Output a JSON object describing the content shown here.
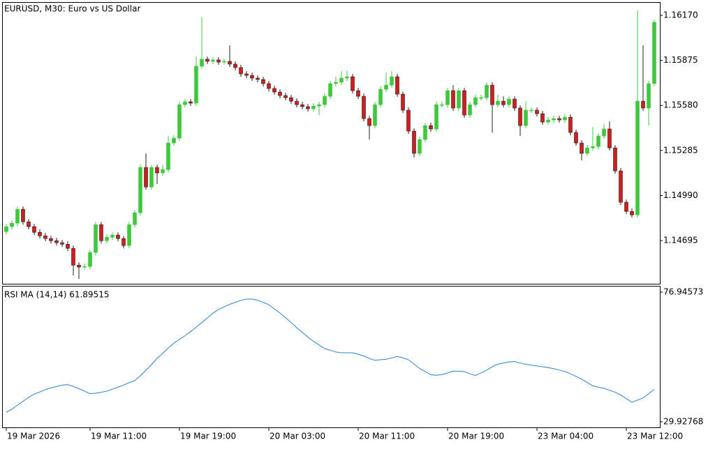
{
  "chart_data": [
    {
      "type": "candlestick",
      "title": "EURUSD, M30:  Euro vs US Dollar",
      "up_color": "#3ec83c",
      "down_color": "#d01e1e",
      "categories": [
        "19 Mar 2026",
        null,
        null,
        null,
        null,
        null,
        null,
        null,
        null,
        null,
        null,
        null,
        null,
        null,
        null,
        "19 Mar 11:00",
        null,
        null,
        null,
        null,
        null,
        null,
        null,
        null,
        null,
        null,
        null,
        null,
        null,
        null,
        null,
        "19 Mar 19:00",
        null,
        null,
        null,
        null,
        null,
        null,
        null,
        null,
        null,
        null,
        null,
        null,
        null,
        null,
        null,
        "20 Mar 03:00",
        null,
        null,
        null,
        null,
        null,
        null,
        null,
        null,
        null,
        null,
        null,
        null,
        null,
        null,
        null,
        "20 Mar 11:00",
        null,
        null,
        null,
        null,
        null,
        null,
        null,
        null,
        null,
        null,
        null,
        null,
        null,
        null,
        null,
        "20 Mar 19:00",
        null,
        null,
        null,
        null,
        null,
        null,
        null,
        null,
        null,
        null,
        null,
        null,
        null,
        null,
        null,
        "23 Mar 04:00",
        null,
        null,
        null,
        null,
        null,
        null,
        null,
        null,
        null,
        null,
        null,
        null,
        null,
        null,
        null,
        "23 Mar 12:00",
        null,
        null,
        null,
        null,
        null
      ],
      "open": [
        1.14754,
        1.14786,
        1.14809,
        1.149,
        1.14818,
        1.14786,
        1.14749,
        1.14726,
        1.14708,
        1.14694,
        1.14681,
        1.14671,
        1.14644,
        1.14534,
        1.14521,
        1.14525,
        1.14617,
        1.14799,
        1.14694,
        1.14717,
        1.14731,
        1.14708,
        1.14662,
        1.14799,
        1.14877,
        1.15174,
        1.15046,
        1.15174,
        1.15138,
        1.1516,
        1.15334,
        1.15366,
        1.15585,
        1.15604,
        1.15595,
        1.15837,
        1.15883,
        1.15869,
        1.15878,
        1.15864,
        1.15869,
        1.15851,
        1.15828,
        1.15787,
        1.15777,
        1.15759,
        1.1575,
        1.15723,
        1.15691,
        1.15668,
        1.15645,
        1.15631,
        1.15608,
        1.15585,
        1.15572,
        1.15558,
        1.15576,
        1.15585,
        1.1564,
        1.15723,
        1.15732,
        1.15759,
        1.15768,
        1.15677,
        1.1564,
        1.15494,
        1.15448,
        1.15585,
        1.15686,
        1.15713,
        1.15768,
        1.15654,
        1.15549,
        1.15412,
        1.15266,
        1.15357,
        1.15448,
        1.15426,
        1.15585,
        1.15585,
        1.15677,
        1.15563,
        1.15677,
        1.15517,
        1.15585,
        1.15631,
        1.15631,
        1.15713,
        1.15585,
        1.15608,
        1.15585,
        1.15622,
        1.15563,
        1.15448,
        1.15549,
        1.15549,
        1.15526,
        1.15471,
        1.15485,
        1.15494,
        1.15485,
        1.15503,
        1.15403,
        1.15334,
        1.15266,
        1.15302,
        1.15311,
        1.1538,
        1.15426,
        1.15302,
        1.15151,
        1.14946,
        1.14886,
        1.14863,
        1.15608,
        1.15563,
        1.15723
      ],
      "high": [
        1.14804,
        1.14827,
        1.14918,
        1.14918,
        1.14836,
        1.14804,
        1.14768,
        1.14745,
        1.14726,
        1.14713,
        1.14699,
        1.1469,
        1.14662,
        1.14553,
        1.14544,
        1.14635,
        1.14818,
        1.14818,
        1.14736,
        1.14749,
        1.14749,
        1.14726,
        1.14818,
        1.14895,
        1.15192,
        1.15266,
        1.15192,
        1.15192,
        1.15192,
        1.1538,
        1.15385,
        1.15604,
        1.15622,
        1.15622,
        1.15901,
        1.16157,
        1.15901,
        1.15896,
        1.15896,
        1.15887,
        1.15974,
        1.15869,
        1.15846,
        1.15805,
        1.15796,
        1.15777,
        1.15768,
        1.15741,
        1.15709,
        1.15686,
        1.15663,
        1.1565,
        1.15627,
        1.15604,
        1.1559,
        1.15595,
        1.15604,
        1.15659,
        1.15741,
        1.15768,
        1.15805,
        1.15809,
        1.15787,
        1.15695,
        1.15659,
        1.15512,
        1.15604,
        1.15704,
        1.15796,
        1.15805,
        1.15787,
        1.15672,
        1.15567,
        1.1543,
        1.15375,
        1.15467,
        1.15467,
        1.15604,
        1.15604,
        1.15695,
        1.15713,
        1.15695,
        1.15695,
        1.15604,
        1.1565,
        1.1565,
        1.15732,
        1.15732,
        1.1565,
        1.1564,
        1.1564,
        1.1564,
        1.15581,
        1.15608,
        1.15567,
        1.15567,
        1.15544,
        1.15503,
        1.15512,
        1.15512,
        1.15522,
        1.15522,
        1.15421,
        1.15353,
        1.1532,
        1.15439,
        1.15398,
        1.15458,
        1.15476,
        1.1532,
        1.1517,
        1.14964,
        1.14905,
        1.16202,
        1.15974,
        1.15741,
        1.16143
      ],
      "low": [
        1.14736,
        1.14768,
        1.1479,
        1.14799,
        1.14768,
        1.14731,
        1.14708,
        1.1469,
        1.14676,
        1.14662,
        1.14653,
        1.14626,
        1.14466,
        1.14443,
        1.14502,
        1.14507,
        1.14598,
        1.14676,
        1.14676,
        1.14699,
        1.1469,
        1.14644,
        1.14644,
        1.14781,
        1.14859,
        1.15028,
        1.15028,
        1.15065,
        1.15119,
        1.15142,
        1.15316,
        1.15348,
        1.15567,
        1.15576,
        1.15576,
        1.15819,
        1.15851,
        1.15851,
        1.15846,
        1.15846,
        1.15832,
        1.15809,
        1.15768,
        1.15759,
        1.15741,
        1.15732,
        1.15704,
        1.15672,
        1.1565,
        1.15627,
        1.15613,
        1.1559,
        1.15567,
        1.15554,
        1.1554,
        1.1554,
        1.15517,
        1.15567,
        1.15622,
        1.15704,
        1.15713,
        1.15741,
        1.15659,
        1.15622,
        1.15476,
        1.15357,
        1.1543,
        1.15567,
        1.15668,
        1.15695,
        1.15636,
        1.15531,
        1.15394,
        1.15238,
        1.15247,
        1.15339,
        1.15407,
        1.15407,
        1.15567,
        1.15567,
        1.15544,
        1.15544,
        1.15499,
        1.15499,
        1.15567,
        1.15613,
        1.15613,
        1.15403,
        1.15567,
        1.15567,
        1.15567,
        1.15544,
        1.1538,
        1.1543,
        1.15531,
        1.15508,
        1.15453,
        1.15453,
        1.15467,
        1.15467,
        1.15467,
        1.15385,
        1.15316,
        1.1522,
        1.15247,
        1.15284,
        1.15293,
        1.15362,
        1.15284,
        1.15133,
        1.14927,
        1.14868,
        1.14845,
        1.14845,
        1.15544,
        1.15448,
        1.15704
      ],
      "close": [
        1.14786,
        1.14809,
        1.149,
        1.14818,
        1.14786,
        1.14749,
        1.14726,
        1.14708,
        1.14694,
        1.14681,
        1.14671,
        1.14644,
        1.14534,
        1.14521,
        1.14525,
        1.14617,
        1.14799,
        1.14694,
        1.14717,
        1.14731,
        1.14708,
        1.14662,
        1.14799,
        1.14877,
        1.15174,
        1.15046,
        1.15174,
        1.15138,
        1.1516,
        1.15334,
        1.15366,
        1.15585,
        1.15604,
        1.15595,
        1.15837,
        1.15883,
        1.15869,
        1.15878,
        1.15864,
        1.15869,
        1.15851,
        1.15828,
        1.15787,
        1.15777,
        1.15759,
        1.1575,
        1.15723,
        1.15691,
        1.15668,
        1.15645,
        1.15631,
        1.15608,
        1.15585,
        1.15572,
        1.15558,
        1.15576,
        1.15585,
        1.1564,
        1.15723,
        1.15732,
        1.15759,
        1.15768,
        1.15677,
        1.1564,
        1.15494,
        1.15448,
        1.15585,
        1.15686,
        1.15713,
        1.15768,
        1.15654,
        1.15549,
        1.15412,
        1.15266,
        1.15357,
        1.15448,
        1.15426,
        1.15585,
        1.15585,
        1.15677,
        1.15563,
        1.15677,
        1.15517,
        1.15585,
        1.15631,
        1.15631,
        1.15713,
        1.15585,
        1.15608,
        1.15585,
        1.15622,
        1.15563,
        1.15448,
        1.15549,
        1.15549,
        1.15526,
        1.15471,
        1.15485,
        1.15494,
        1.15485,
        1.15503,
        1.15403,
        1.15334,
        1.15266,
        1.15302,
        1.15311,
        1.1538,
        1.15426,
        1.15302,
        1.15151,
        1.14946,
        1.14886,
        1.14863,
        1.15608,
        1.15563,
        1.15723,
        1.16125
      ],
      "ylim": [
        1.14412,
        1.16257
      ],
      "yticks": [
        1.14695,
        {
          "value": 1.1499,
          "label": "1.14990"
        },
        1.15285,
        {
          "value": 1.1558,
          "label": "1.15580"
        },
        1.15875,
        {
          "value": 1.1617,
          "label": "1.16170"
        }
      ]
    },
    {
      "type": "line",
      "title": "RSI MA (14,14) 61.89515",
      "color": "#2a82d8",
      "values": [
        33.34,
        34.53,
        35.89,
        37.36,
        38.8,
        39.94,
        40.75,
        41.56,
        42.24,
        42.72,
        43.22,
        43.4,
        42.74,
        41.96,
        41.05,
        40.14,
        40.29,
        40.59,
        41.05,
        41.76,
        42.47,
        43.27,
        44.08,
        44.89,
        46.61,
        48.63,
        50.65,
        52.93,
        54.7,
        56.72,
        58.41,
        59.8,
        61.17,
        62.64,
        64.25,
        65.87,
        67.59,
        69.29,
        70.7,
        71.61,
        72.52,
        73.25,
        73.96,
        74.42,
        74.42,
        74.01,
        73.2,
        72.39,
        70.88,
        69.36,
        67.69,
        65.87,
        64.05,
        62.33,
        60.61,
        59.1,
        57.78,
        56.47,
        55.86,
        55.25,
        54.95,
        54.95,
        54.95,
        54.42,
        53.81,
        52.88,
        52.22,
        52.42,
        52.63,
        53.08,
        53.61,
        53.11,
        52.42,
        50.81,
        49.24,
        48.13,
        47.01,
        46.79,
        47.04,
        47.62,
        48.3,
        48.25,
        48.13,
        47.32,
        46.74,
        47.67,
        48.68,
        49.9,
        50.81,
        51.21,
        51.62,
        51.79,
        51.24,
        50.78,
        50.48,
        50.17,
        49.9,
        49.57,
        49.19,
        48.68,
        48.18,
        47.32,
        46.41,
        45.4,
        44.19,
        42.97,
        42.47,
        42.06,
        41.35,
        40.65,
        39.63,
        38.32,
        37.0,
        37.81,
        38.57,
        40.13,
        41.7
      ],
      "ylim": [
        27.9,
        79.22
      ],
      "yticks": [
        29.92768,
        76.94573
      ]
    }
  ]
}
